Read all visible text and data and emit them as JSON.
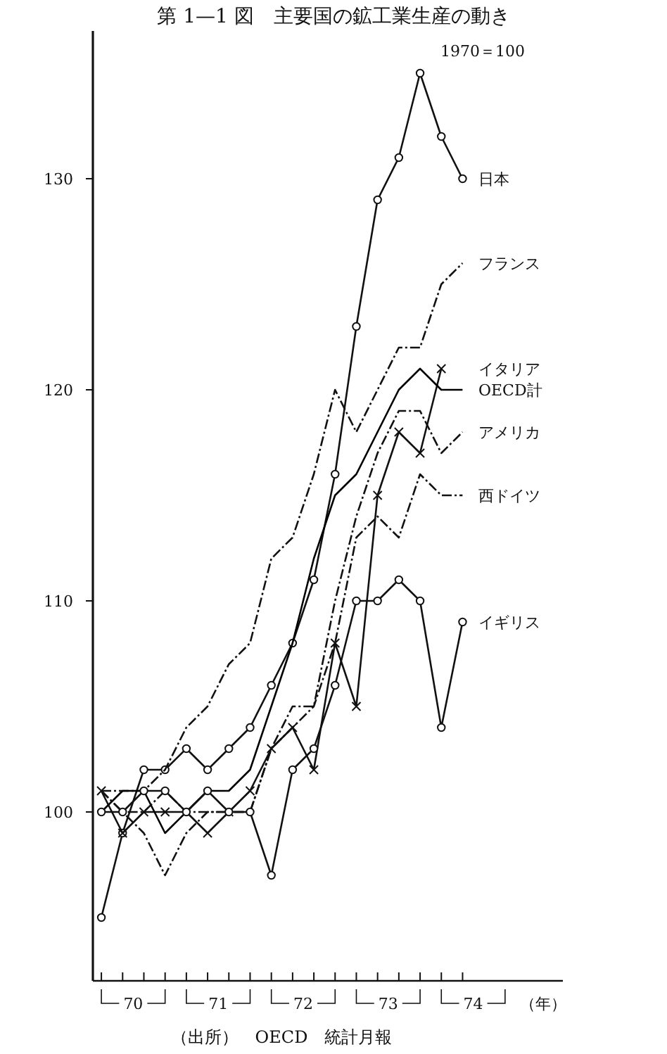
{
  "chart_data": {
    "type": "line",
    "title": "第 1—1 図　主要国の鉱工業生産の動き",
    "subtitle": "1970＝100",
    "xlabel": "（年）",
    "annotations": [
      "（出所）　OECD　統計月報"
    ],
    "x": [
      70,
      70.25,
      70.5,
      70.75,
      71,
      71.25,
      71.5,
      71.75,
      72,
      72.25,
      72.5,
      72.75,
      73,
      73.25,
      73.5,
      73.75,
      74,
      74.25
    ],
    "xlim": [
      69.9,
      75.43
    ],
    "ylim": [
      92,
      137
    ],
    "xticks": [
      {
        "value": 70,
        "label": null
      },
      {
        "value": 70.25,
        "label": null
      },
      {
        "value": 70.5,
        "label": null
      },
      {
        "value": 70.75,
        "label": null
      },
      {
        "value": 71,
        "label": null
      },
      {
        "value": 71.25,
        "label": null
      },
      {
        "value": 71.5,
        "label": null
      },
      {
        "value": 71.75,
        "label": null
      },
      {
        "value": 72,
        "label": null
      },
      {
        "value": 72.25,
        "label": null
      },
      {
        "value": 72.5,
        "label": null
      },
      {
        "value": 72.75,
        "label": null
      },
      {
        "value": 73,
        "label": null
      },
      {
        "value": 73.25,
        "label": null
      },
      {
        "value": 73.5,
        "label": null
      },
      {
        "value": 73.75,
        "label": null
      },
      {
        "value": 74,
        "label": null
      },
      {
        "value": 74.25,
        "label": null
      },
      {
        "value": 70.375,
        "label": "70"
      },
      {
        "value": 71.375,
        "label": "71"
      },
      {
        "value": 72.375,
        "label": "72"
      },
      {
        "value": 73.375,
        "label": "73"
      },
      {
        "value": 74.375,
        "label": "74"
      }
    ],
    "yticks": [
      100,
      110,
      120,
      130
    ],
    "grid": false,
    "series": [
      {
        "name": "日本",
        "color": "#111111",
        "marker": "circle",
        "line_style": "solid",
        "values": [
          95,
          99,
          102,
          102,
          103,
          102,
          103,
          104,
          106,
          108,
          111,
          116,
          123,
          129,
          131,
          135,
          132,
          130
        ]
      },
      {
        "name": "フランス",
        "color": "#111111",
        "marker": "none",
        "line_style": "dashed",
        "values": [
          101,
          101,
          101,
          102,
          104,
          105,
          107,
          108,
          112,
          113,
          116,
          120,
          118,
          120,
          122,
          122,
          125,
          126
        ]
      },
      {
        "name": "イタリア",
        "color": "#111111",
        "marker": "cross",
        "line_style": "solid",
        "values": [
          101,
          99,
          100,
          100,
          100,
          99,
          100,
          101,
          103,
          104,
          102,
          108,
          105,
          115,
          118,
          117,
          121,
          null
        ]
      },
      {
        "name": "OECD計",
        "color": "#000000",
        "marker": "none",
        "line_style": "solid",
        "values": [
          100,
          101,
          101,
          99,
          100,
          101,
          101,
          102,
          105,
          108,
          112,
          115,
          116,
          118,
          120,
          121,
          120,
          120
        ]
      },
      {
        "name": "アメリカ",
        "color": "#111111",
        "marker": "none",
        "line_style": "dashed",
        "values": [
          101,
          100,
          99,
          97,
          99,
          100,
          100,
          100,
          103,
          105,
          105,
          110,
          114,
          117,
          119,
          119,
          117,
          118
        ]
      },
      {
        "name": "西ドイツ",
        "color": "#111111",
        "marker": "none",
        "line_style": "dashed",
        "values": [
          101,
          100,
          100,
          101,
          100,
          100,
          100,
          100,
          103,
          104,
          105,
          108,
          113,
          114,
          113,
          116,
          115,
          115
        ]
      },
      {
        "name": "イギリス",
        "color": "#111111",
        "marker": "circle",
        "line_style": "solid",
        "values": [
          100,
          100,
          101,
          101,
          100,
          101,
          100,
          100,
          97,
          102,
          103,
          106,
          110,
          110,
          111,
          110,
          104,
          109
        ]
      }
    ]
  }
}
